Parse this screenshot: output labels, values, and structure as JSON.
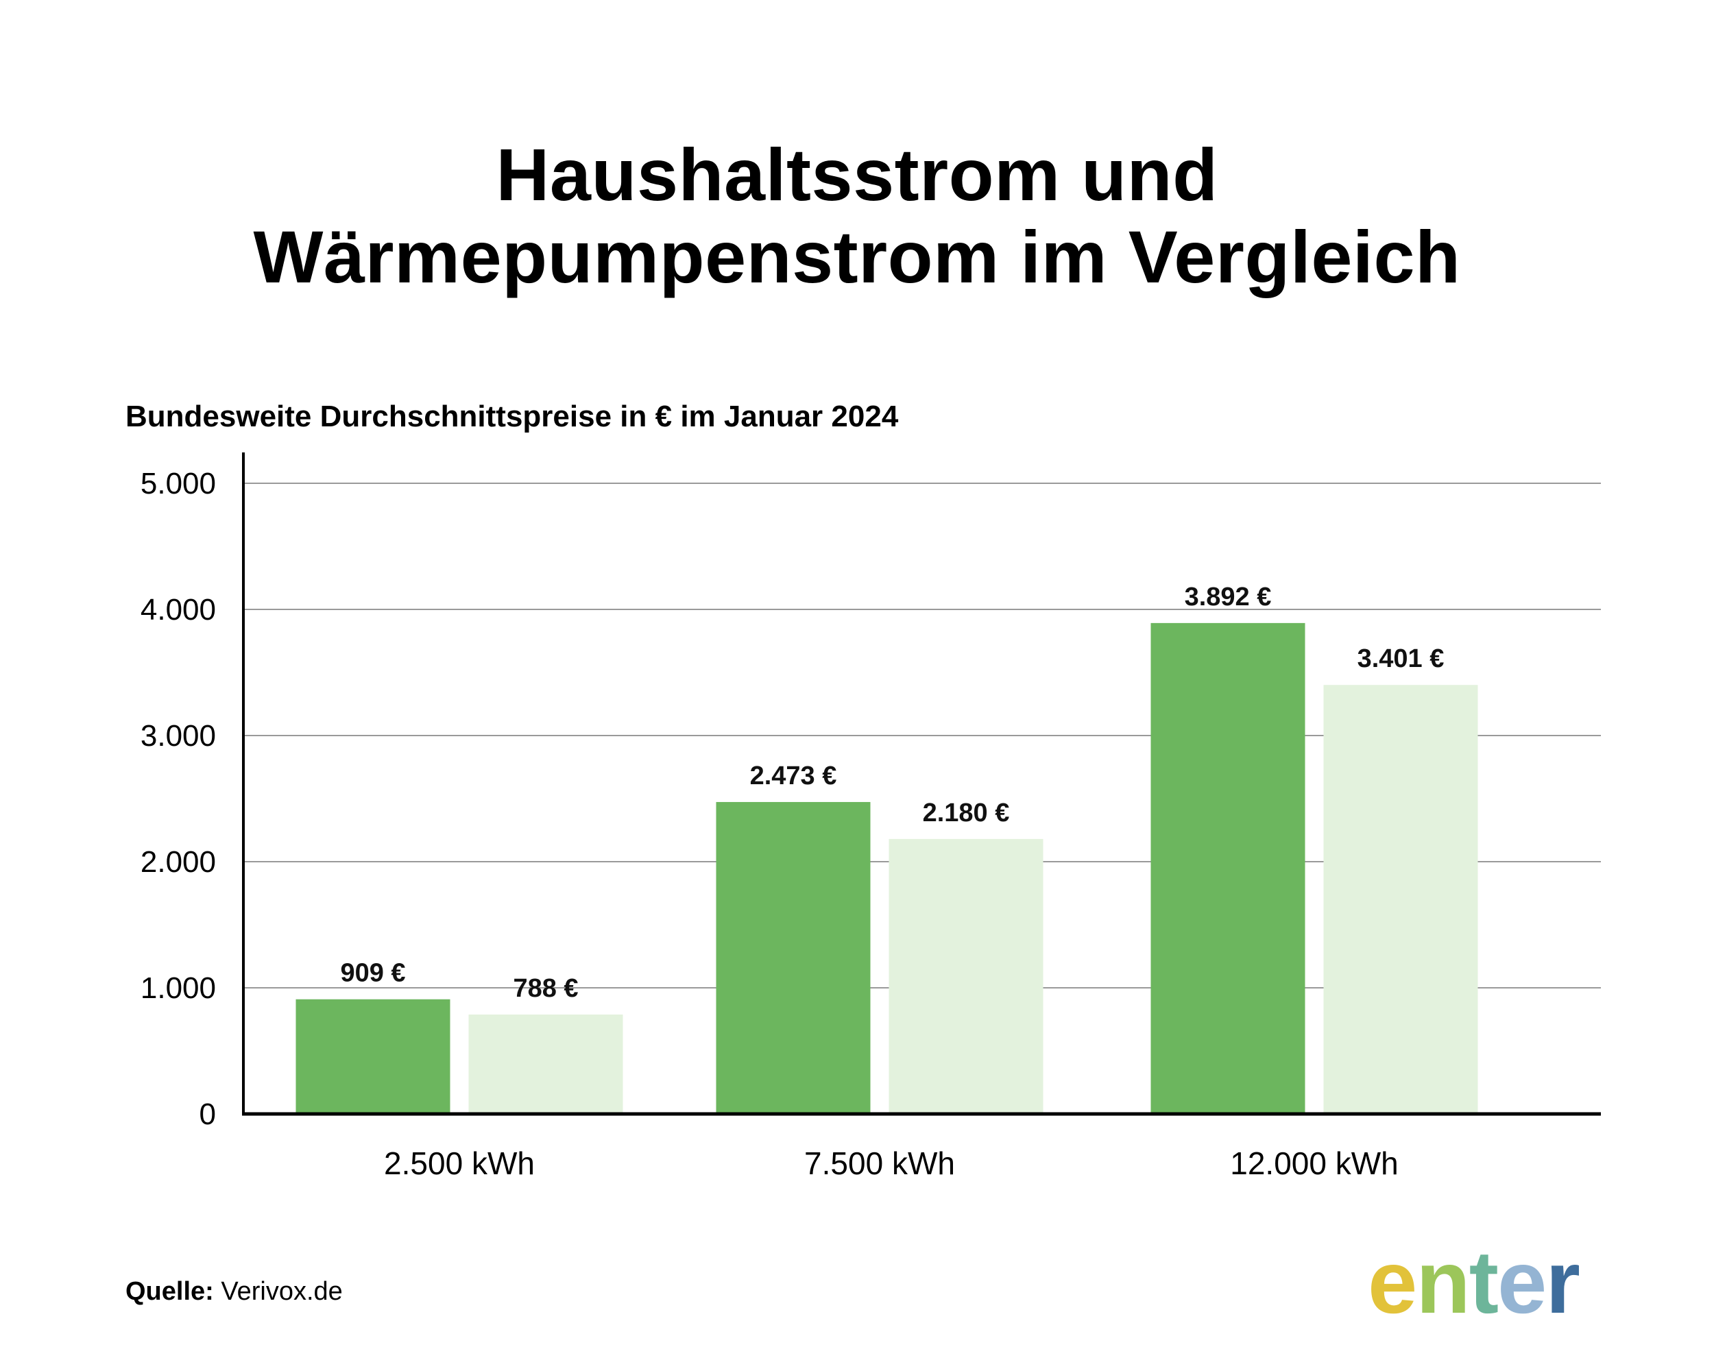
{
  "header": {
    "title_line1": "Haushaltsstrom und",
    "title_line2": "Wärmepumpenstrom im Vergleich",
    "subtitle": "Bundesweite Durchschnittspreise in € im Januar 2024"
  },
  "chart_data": {
    "type": "bar",
    "title": "Haushaltsstrom und Wärmepumpenstrom im Vergleich",
    "subtitle": "Bundesweite Durchschnittspreise in € im Januar 2024",
    "categories": [
      "2.500 kWh",
      "7.500 kWh",
      "12.000 kWh"
    ],
    "series": [
      {
        "values": [
          909,
          2473,
          3892
        ],
        "labels": [
          "909 €",
          "2.473 €",
          "3.892 €"
        ],
        "color": "#6cb65e"
      },
      {
        "values": [
          788,
          2180,
          3401
        ],
        "labels": [
          "788 €",
          "2.180 €",
          "3.401 €"
        ],
        "color": "#e3f2dd"
      }
    ],
    "ylim": [
      0,
      5000
    ],
    "yticks": [
      0,
      1000,
      2000,
      3000,
      4000,
      5000
    ],
    "ytick_labels": [
      "0",
      "1.000",
      "2.000",
      "3.000",
      "4.000",
      "5.000"
    ],
    "grid": true,
    "xlabel": "",
    "ylabel": ""
  },
  "footer": {
    "source_label": "Quelle:",
    "source_value": "Verivox.de"
  },
  "logo": {
    "letters": [
      "e",
      "n",
      "t",
      "e",
      "r"
    ],
    "colors": [
      "#e2c23a",
      "#9cc65a",
      "#6db59a",
      "#94b4d3",
      "#3e6d9c"
    ]
  }
}
